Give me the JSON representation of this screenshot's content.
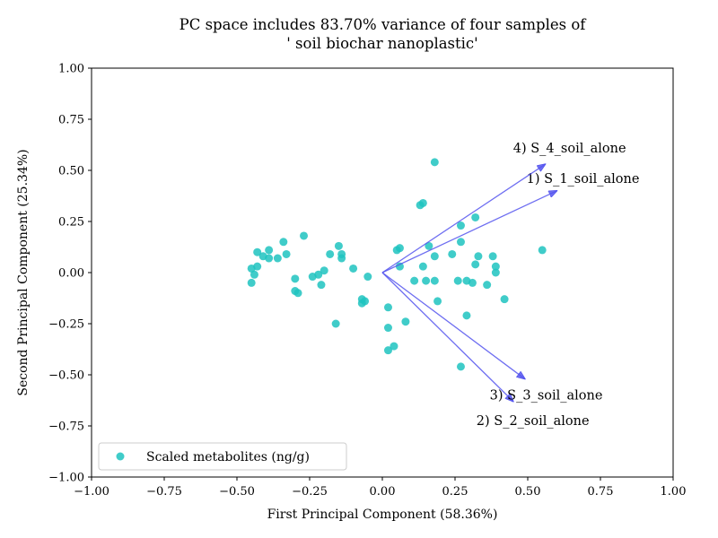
{
  "chart_data": {
    "type": "scatter",
    "title_lines": [
      "PC space includes 83.70% variance of four samples of",
      "' soil biochar nanoplastic'"
    ],
    "xlabel": "First Principal Component (58.36%)",
    "ylabel": "Second Principal Component (25.34%)",
    "xlim": [
      -1.0,
      1.0
    ],
    "ylim": [
      -1.0,
      1.0
    ],
    "x_ticks": [
      "−1.00",
      "−0.75",
      "−0.50",
      "−0.25",
      "0.00",
      "0.25",
      "0.50",
      "0.75",
      "1.00"
    ],
    "y_ticks": [
      "−1.00",
      "−0.75",
      "−0.50",
      "−0.25",
      "0.00",
      "0.25",
      "0.50",
      "0.75",
      "1.00"
    ],
    "x_tick_values": [
      -1.0,
      -0.75,
      -0.5,
      -0.25,
      0.0,
      0.25,
      0.5,
      0.75,
      1.0
    ],
    "y_tick_values": [
      -1.0,
      -0.75,
      -0.5,
      -0.25,
      0.0,
      0.25,
      0.5,
      0.75,
      1.0
    ],
    "grid": false,
    "legend": {
      "placement": "lower-left",
      "entries": [
        "Scaled metabolites (ng/g)"
      ]
    },
    "colors": {
      "points": "#1ec3c0",
      "arrows": "#5555ee"
    },
    "series": [
      {
        "name": "Scaled metabolites (ng/g)",
        "points": [
          [
            -0.45,
            0.02
          ],
          [
            -0.44,
            -0.01
          ],
          [
            -0.43,
            0.1
          ],
          [
            -0.43,
            0.03
          ],
          [
            -0.45,
            -0.05
          ],
          [
            -0.41,
            0.08
          ],
          [
            -0.39,
            0.11
          ],
          [
            -0.39,
            0.07
          ],
          [
            -0.36,
            0.07
          ],
          [
            -0.34,
            0.15
          ],
          [
            -0.33,
            0.09
          ],
          [
            -0.3,
            -0.03
          ],
          [
            -0.3,
            -0.09
          ],
          [
            -0.29,
            -0.1
          ],
          [
            -0.27,
            0.18
          ],
          [
            -0.24,
            -0.02
          ],
          [
            -0.22,
            -0.01
          ],
          [
            -0.21,
            -0.06
          ],
          [
            -0.2,
            0.01
          ],
          [
            -0.18,
            0.09
          ],
          [
            -0.16,
            -0.25
          ],
          [
            -0.15,
            0.13
          ],
          [
            -0.14,
            0.07
          ],
          [
            -0.14,
            0.09
          ],
          [
            -0.1,
            0.02
          ],
          [
            -0.07,
            -0.13
          ],
          [
            -0.07,
            -0.15
          ],
          [
            -0.06,
            -0.14
          ],
          [
            -0.05,
            -0.02
          ],
          [
            0.02,
            -0.17
          ],
          [
            0.02,
            -0.27
          ],
          [
            0.02,
            -0.38
          ],
          [
            0.04,
            -0.36
          ],
          [
            0.05,
            0.11
          ],
          [
            0.06,
            0.12
          ],
          [
            0.06,
            0.03
          ],
          [
            0.08,
            -0.24
          ],
          [
            0.11,
            -0.04
          ],
          [
            0.13,
            0.33
          ],
          [
            0.14,
            0.34
          ],
          [
            0.14,
            0.03
          ],
          [
            0.15,
            -0.04
          ],
          [
            0.16,
            0.13
          ],
          [
            0.18,
            -0.04
          ],
          [
            0.18,
            0.08
          ],
          [
            0.18,
            0.54
          ],
          [
            0.19,
            -0.14
          ],
          [
            0.24,
            0.09
          ],
          [
            0.26,
            -0.04
          ],
          [
            0.27,
            0.23
          ],
          [
            0.27,
            0.15
          ],
          [
            0.27,
            -0.46
          ],
          [
            0.29,
            -0.21
          ],
          [
            0.29,
            -0.04
          ],
          [
            0.31,
            -0.05
          ],
          [
            0.32,
            0.04
          ],
          [
            0.32,
            0.27
          ],
          [
            0.33,
            0.08
          ],
          [
            0.36,
            -0.06
          ],
          [
            0.38,
            0.08
          ],
          [
            0.39,
            0.0
          ],
          [
            0.39,
            0.03
          ],
          [
            0.42,
            -0.13
          ],
          [
            0.55,
            0.11
          ]
        ]
      }
    ],
    "loadings": [
      {
        "label": "1) S_1_soil_alone",
        "x": 0.6,
        "y": 0.4
      },
      {
        "label": "2) S_2_soil_alone",
        "x": 0.45,
        "y": -0.63
      },
      {
        "label": "3) S_3_soil_alone",
        "x": 0.49,
        "y": -0.52
      },
      {
        "label": "4) S_4_soil_alone",
        "x": 0.56,
        "y": 0.53
      }
    ]
  }
}
